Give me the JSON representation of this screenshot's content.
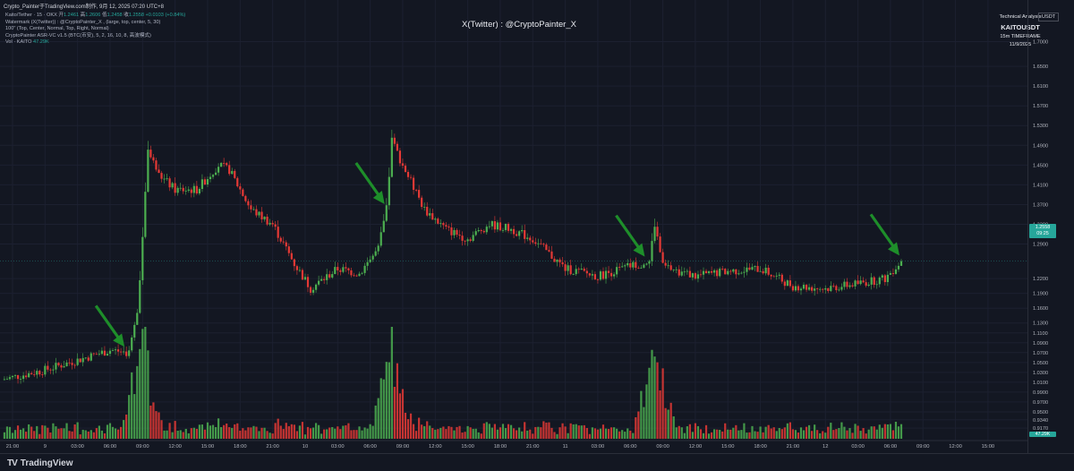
{
  "caption": "Crypto_Painter于TradingView.com制作, 9月 12, 2025 07:20 UTC+8",
  "legend": {
    "symbol_line": "Kaito/Tether · 15 · OKX",
    "ohlc": [
      {
        "label": "开",
        "value": "1.2461"
      },
      {
        "label": "高",
        "value": "1.2606"
      },
      {
        "label": "低",
        "value": "1.2458"
      },
      {
        "label": "收",
        "value": "1.2558"
      }
    ],
    "change": "+0.0103 (+0.84%)",
    "indicators": [
      "Watermark (X(Twitter)) : @CryptoPainter_X , (large, top, center, 5, 30)",
      "100\" (Top, Center, Normal, Top, Right, Normal)",
      "CryptoPainter ASR-VC v1.5 (BTC(币安), 5, 2, 16, 10, 8, 高波模式)"
    ],
    "volume_label": "Vol · KAITO",
    "volume_value": "47.29K"
  },
  "watermark": "X(Twitter) : @CryptoPainter_X",
  "info_box": {
    "heading": "Technical Analysis",
    "symbol": "KAITOUSDT",
    "timeframe": "15m TIMEFRAME",
    "date": "11/9/2025"
  },
  "pair_button": "USDT",
  "last_price": "1.2558",
  "last_price_timer": "09:25",
  "last_volume": "47.29K",
  "price_scale_labels": [
    "1.7000",
    "1.6500",
    "1.6100",
    "1.5700",
    "1.5300",
    "1.4900",
    "1.4500",
    "1.4100",
    "1.3700",
    "1.3300",
    "1.2900",
    "1.2200",
    "1.1900",
    "1.1600",
    "1.1300",
    "1.1100",
    "1.0900",
    "1.0700",
    "1.0500",
    "1.0300",
    "1.0100",
    "0.9900",
    "0.9700",
    "0.9500",
    "0.9340",
    "0.9170"
  ],
  "time_labels": [
    "21:00",
    "9",
    "03:00",
    "06:00",
    "09:00",
    "12:00",
    "15:00",
    "18:00",
    "21:00",
    "10",
    "03:00",
    "06:00",
    "09:00",
    "12:00",
    "15:00",
    "18:00",
    "21:00",
    "11",
    "03:00",
    "06:00",
    "09:00",
    "12:00",
    "15:00",
    "18:00",
    "21:00",
    "12",
    "03:00",
    "06:00",
    "09:00",
    "12:00",
    "15:00"
  ],
  "brand": "TradingView",
  "colors": {
    "background": "#131722",
    "up": "#26a69a",
    "down": "#ef5350",
    "candle_up": "#4caf50",
    "candle_down": "#e53935",
    "arrow": "#1e8e2a",
    "grid": "#1c2030"
  },
  "chart_data": {
    "type": "candlestick",
    "symbol": "KAITOUSDT",
    "exchange": "OKX",
    "timeframe": "15m",
    "ylim": [
      0.91,
      1.73
    ],
    "close_path": [
      {
        "t": "8 20:00",
        "p": 1.015
      },
      {
        "t": "9 00:00",
        "p": 1.035
      },
      {
        "t": "9 03:00",
        "p": 1.055
      },
      {
        "t": "9 06:00",
        "p": 1.075
      },
      {
        "t": "9 07:45",
        "p": 1.07
      },
      {
        "t": "9 08:30",
        "p": 1.15
      },
      {
        "t": "9 09:00",
        "p": 1.3
      },
      {
        "t": "9 09:30",
        "p": 1.48
      },
      {
        "t": "9 10:30",
        "p": 1.43
      },
      {
        "t": "9 12:00",
        "p": 1.4
      },
      {
        "t": "9 14:00",
        "p": 1.4
      },
      {
        "t": "9 16:00",
        "p": 1.45
      },
      {
        "t": "9 17:00",
        "p": 1.44
      },
      {
        "t": "9 19:00",
        "p": 1.36
      },
      {
        "t": "9 21:00",
        "p": 1.33
      },
      {
        "t": "9 23:00",
        "p": 1.25
      },
      {
        "t": "10 00:30",
        "p": 1.2
      },
      {
        "t": "10 03:00",
        "p": 1.24
      },
      {
        "t": "10 05:00",
        "p": 1.23
      },
      {
        "t": "10 06:45",
        "p": 1.28
      },
      {
        "t": "10 07:30",
        "p": 1.36
      },
      {
        "t": "10 08:00",
        "p": 1.5
      },
      {
        "t": "10 09:00",
        "p": 1.45
      },
      {
        "t": "10 11:00",
        "p": 1.36
      },
      {
        "t": "10 13:00",
        "p": 1.32
      },
      {
        "t": "10 15:00",
        "p": 1.3
      },
      {
        "t": "10 17:00",
        "p": 1.33
      },
      {
        "t": "10 19:00",
        "p": 1.32
      },
      {
        "t": "10 21:00",
        "p": 1.3
      },
      {
        "t": "11 00:00",
        "p": 1.24
      },
      {
        "t": "11 03:00",
        "p": 1.225
      },
      {
        "t": "11 06:00",
        "p": 1.245
      },
      {
        "t": "11 07:45",
        "p": 1.255
      },
      {
        "t": "11 08:15",
        "p": 1.33
      },
      {
        "t": "11 09:00",
        "p": 1.245
      },
      {
        "t": "11 12:00",
        "p": 1.225
      },
      {
        "t": "11 15:00",
        "p": 1.235
      },
      {
        "t": "11 18:00",
        "p": 1.24
      },
      {
        "t": "11 21:00",
        "p": 1.205
      },
      {
        "t": "12 00:00",
        "p": 1.2
      },
      {
        "t": "12 03:00",
        "p": 1.21
      },
      {
        "t": "12 05:30",
        "p": 1.22
      },
      {
        "t": "12 07:00",
        "p": 1.2558
      }
    ],
    "volume_peaks": [
      {
        "t": "9 09:00",
        "v": "high"
      },
      {
        "t": "10 08:00",
        "v": "highest"
      },
      {
        "t": "11 08:15",
        "v": "high"
      }
    ],
    "annotations": [
      {
        "type": "arrow",
        "at": "9 07:30",
        "direction": "down-right"
      },
      {
        "type": "arrow",
        "at": "10 07:30",
        "direction": "down-right"
      },
      {
        "type": "arrow",
        "at": "11 07:30",
        "direction": "down-right"
      },
      {
        "type": "arrow",
        "at": "12 07:00",
        "direction": "down-right"
      }
    ]
  }
}
